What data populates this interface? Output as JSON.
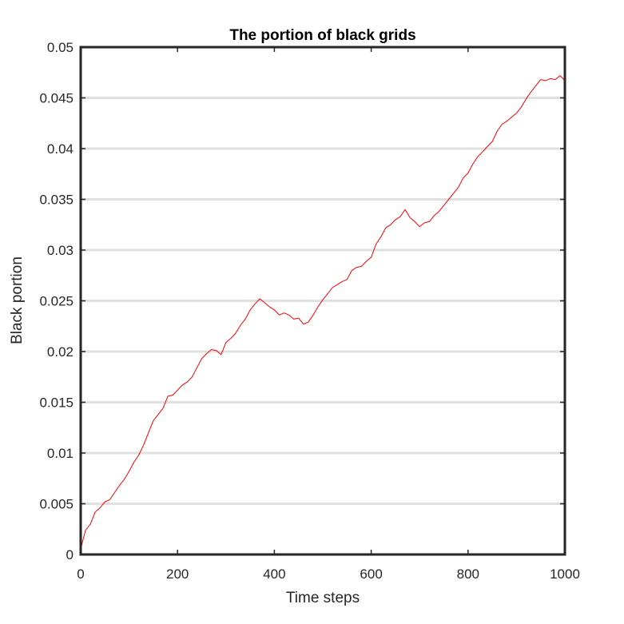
{
  "chart_data": {
    "type": "line",
    "title": "The portion of black grids",
    "xlabel": "Time steps",
    "ylabel": "Black portion",
    "xlim": [
      0,
      1000
    ],
    "ylim": [
      0,
      0.05
    ],
    "x_ticks": [
      0,
      200,
      400,
      600,
      800,
      1000
    ],
    "x_tick_labels": [
      "0",
      "200",
      "400",
      "600",
      "800",
      "1000"
    ],
    "y_ticks": [
      0,
      0.005,
      0.01,
      0.015,
      0.02,
      0.025,
      0.03,
      0.035,
      0.04,
      0.045,
      0.05
    ],
    "y_tick_labels": [
      "0",
      "0.005",
      "0.01",
      "0.015",
      "0.02",
      "0.025",
      "0.03",
      "0.035",
      "0.04",
      "0.045",
      "0.05"
    ],
    "grid": "horizontal",
    "line_color": "#ff0000",
    "grid_color": "#e0e0e0",
    "series": [
      {
        "x": [
          0,
          5,
          10,
          20,
          30,
          40,
          50,
          60,
          70,
          80,
          90,
          100,
          110,
          120,
          130,
          140,
          150,
          160,
          170,
          180,
          190,
          200,
          210,
          220,
          230,
          240,
          250,
          260,
          270,
          280,
          290,
          300,
          310,
          320,
          330,
          340,
          350,
          360,
          370,
          380,
          390,
          400,
          410,
          420,
          430,
          440,
          450,
          460,
          470,
          480,
          490,
          500,
          510,
          520,
          530,
          540,
          550,
          560,
          570,
          580,
          590,
          600,
          610,
          620,
          630,
          640,
          650,
          660,
          670,
          680,
          690,
          700,
          710,
          720,
          730,
          740,
          750,
          760,
          770,
          780,
          790,
          800,
          810,
          820,
          830,
          840,
          850,
          860,
          870,
          880,
          890,
          900,
          910,
          920,
          930,
          940,
          950,
          960,
          970,
          980,
          990,
          1000
        ],
        "y": [
          0.0005,
          0.0015,
          0.0024,
          0.003,
          0.0042,
          0.0046,
          0.0052,
          0.0054,
          0.0061,
          0.0068,
          0.0074,
          0.0082,
          0.0091,
          0.0098,
          0.0108,
          0.012,
          0.0132,
          0.0138,
          0.0144,
          0.0156,
          0.0157,
          0.0162,
          0.0167,
          0.017,
          0.0175,
          0.0184,
          0.0193,
          0.0198,
          0.0202,
          0.0201,
          0.0197,
          0.0209,
          0.0213,
          0.0218,
          0.0226,
          0.0232,
          0.0241,
          0.0247,
          0.0252,
          0.0248,
          0.0244,
          0.0241,
          0.0236,
          0.0238,
          0.0236,
          0.0232,
          0.0233,
          0.0227,
          0.0229,
          0.0236,
          0.0244,
          0.0251,
          0.0257,
          0.0263,
          0.0266,
          0.0269,
          0.0271,
          0.028,
          0.0283,
          0.0284,
          0.0289,
          0.0293,
          0.0306,
          0.0313,
          0.0322,
          0.0325,
          0.033,
          0.0333,
          0.034,
          0.0332,
          0.0328,
          0.0323,
          0.0327,
          0.0328,
          0.0334,
          0.0338,
          0.0344,
          0.035,
          0.0356,
          0.0362,
          0.0371,
          0.0376,
          0.0385,
          0.0392,
          0.0397,
          0.0402,
          0.0407,
          0.0417,
          0.0424,
          0.0427,
          0.0431,
          0.0435,
          0.0441,
          0.0449,
          0.0456,
          0.0462,
          0.0468,
          0.0467,
          0.0469,
          0.0468,
          0.0472,
          0.0467
        ]
      }
    ]
  }
}
